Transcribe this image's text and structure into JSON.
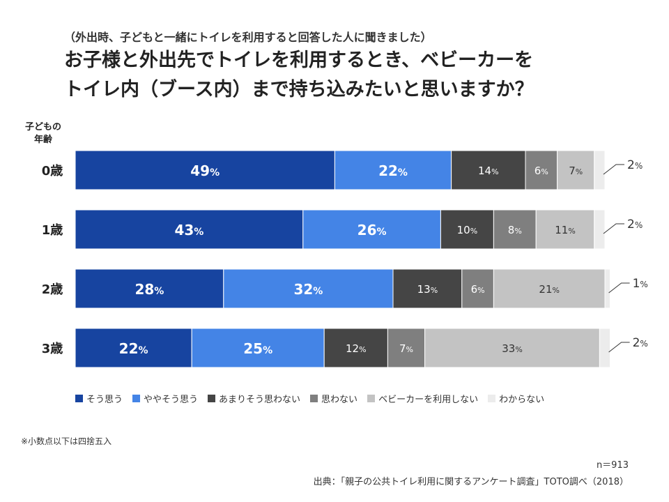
{
  "header": {
    "subtitle": "（外出時、子どもと一緒にトイレを利用すると回答した人に聞きました）",
    "title_line1": "お子様と外出先でトイレを利用するとき、ベビーカーを",
    "title_line2": "トイレ内（ブース内）まで持ち込みたいと思いますか？"
  },
  "axis_title": {
    "line1": "子どもの",
    "line2": "年齢"
  },
  "chart_data": {
    "type": "bar",
    "orientation": "horizontal",
    "stacked": true,
    "percent_suffix": "%",
    "categories": [
      "0歳",
      "1歳",
      "2歳",
      "3歳"
    ],
    "series": [
      {
        "name": "そう思う",
        "color": "#1744a0",
        "values": [
          49,
          43,
          28,
          22
        ]
      },
      {
        "name": "ややそう思う",
        "color": "#4484e6",
        "values": [
          22,
          26,
          32,
          25
        ]
      },
      {
        "name": "あまりそう思わない",
        "color": "#454545",
        "values": [
          14,
          10,
          13,
          12
        ]
      },
      {
        "name": "思わない",
        "color": "#7f7f7f",
        "values": [
          6,
          8,
          6,
          7
        ]
      },
      {
        "name": "ベビーカーを利用しない",
        "color": "#c3c3c3",
        "values": [
          7,
          11,
          21,
          33
        ]
      },
      {
        "name": "わからない",
        "color": "#ececec",
        "values": [
          2,
          2,
          1,
          2
        ]
      }
    ],
    "legend_position": "bottom"
  },
  "footer": {
    "note": "※小数点以下は四捨五入",
    "n": "n＝913",
    "source": "出典：「親子の公共トイレ利用に関するアンケート調査」TOTO調べ（2018）"
  }
}
